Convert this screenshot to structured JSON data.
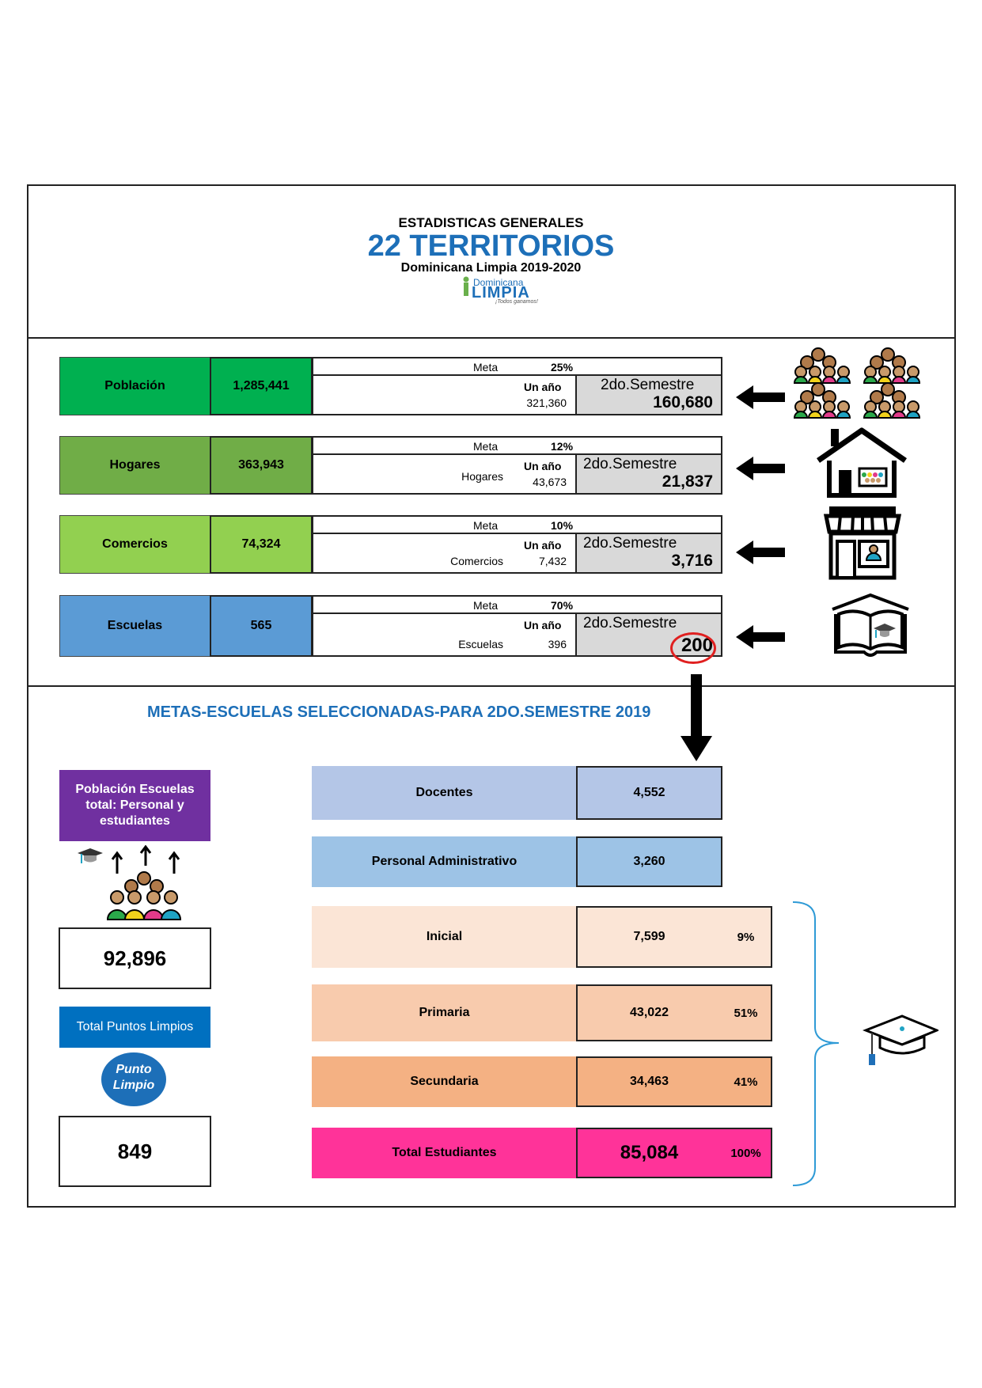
{
  "header": {
    "pretitle": "ESTADISTICAS GENERALES",
    "title": "22 TERRITORIOS",
    "subtitle": "Dominicana Limpia 2019-2020",
    "logo_text_top": "Dominicana",
    "logo_text_main": "LIMPIA",
    "logo_text_tag": "¡Todos ganamos!"
  },
  "rows": [
    {
      "label": "Población",
      "value": "1,285,441",
      "meta_label": "Meta",
      "meta_pct": "25%",
      "anio_label": "Un año",
      "anio_sub": "",
      "anio_val": "321,360",
      "sem_label": "2do.Semestre",
      "sem_val": "160,680",
      "color": "#00b050"
    },
    {
      "label": "Hogares",
      "value": "363,943",
      "meta_label": "Meta",
      "meta_pct": "12%",
      "anio_label": "Un año",
      "anio_sub": "Hogares",
      "anio_val": "43,673",
      "sem_label": "2do.Semestre",
      "sem_val": "21,837",
      "color": "#70ad47"
    },
    {
      "label": "Comercios",
      "value": "74,324",
      "meta_label": "Meta",
      "meta_pct": "10%",
      "anio_label": "Un año",
      "anio_sub": "Comercios",
      "anio_val": "7,432",
      "sem_label": "2do.Semestre",
      "sem_val": "3,716",
      "color": "#92d050"
    },
    {
      "label": "Escuelas",
      "value": "565",
      "meta_label": "Meta",
      "meta_pct": "70%",
      "anio_label": "Un año",
      "anio_sub": "Escuelas",
      "anio_val": "396",
      "sem_label": "2do.Semestre",
      "sem_val": "200",
      "color": "#5b9bd5"
    }
  ],
  "section2": {
    "title": "METAS-ESCUELAS SELECCIONADAS-PARA 2DO.SEMESTRE 2019",
    "poblacion_label": "Población Escuelas total: Personal y estudiantes",
    "poblacion_value": "92,896",
    "puntos_label": "Total Puntos Limpios",
    "puntos_logo_line1": "Punto",
    "puntos_logo_line2": "Limpio",
    "puntos_value": "849"
  },
  "table": [
    {
      "label": "Docentes",
      "value": "4,552",
      "pct": "",
      "label_bg": "#b4c6e7",
      "value_bg": "#b4c6e7"
    },
    {
      "label": "Personal Administrativo",
      "value": "3,260",
      "pct": "",
      "label_bg": "#9dc3e6",
      "value_bg": "#9dc3e6"
    },
    {
      "label": "Inicial",
      "value": "7,599",
      "pct": "9%",
      "label_bg": "#fbe5d6",
      "value_bg": "#fbe5d6"
    },
    {
      "label": "Primaria",
      "value": "43,022",
      "pct": "51%",
      "label_bg": "#f8cbad",
      "value_bg": "#f8cbad"
    },
    {
      "label": "Secundaria",
      "value": "34,463",
      "pct": "41%",
      "label_bg": "#f4b183",
      "value_bg": "#f4b183"
    },
    {
      "label": "Total Estudiantes",
      "value": "85,084",
      "pct": "100%",
      "label_bg": "#ff3399",
      "value_bg": "#ff3399"
    }
  ],
  "colors": {
    "accent": "#1d6fb8",
    "purple": "#7030a0",
    "blue_box": "#0070c0"
  }
}
